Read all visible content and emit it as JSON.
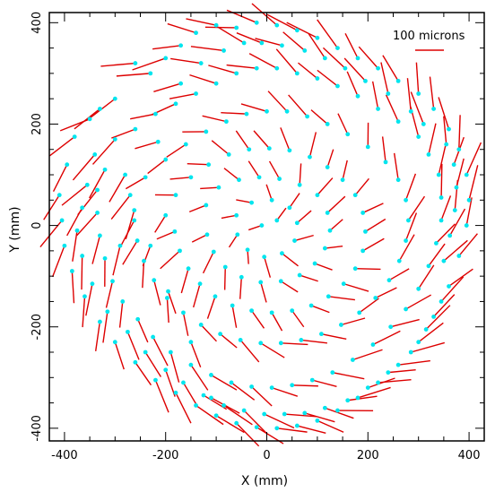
{
  "chart_data": {
    "type": "scatter",
    "title": "",
    "xlabel": "X (mm)",
    "ylabel": "Y (mm)",
    "xlim": [
      -430,
      430
    ],
    "ylim": [
      -425,
      420
    ],
    "x_ticks": [
      -400,
      -200,
      0,
      200,
      400
    ],
    "y_ticks": [
      -400,
      -200,
      0,
      200,
      400
    ],
    "x_tick_labels": [
      "-400",
      "-200",
      "0",
      "200",
      "400"
    ],
    "y_tick_labels": [
      "-400",
      "-200",
      "0",
      "200",
      "400"
    ],
    "grid": false,
    "legend": {
      "label": "100 microns",
      "placement": "top-right",
      "reference_vector_microns": 100
    },
    "colors": {
      "vector": "#dd0000",
      "point": "#00e5ee",
      "axis": "#000000"
    },
    "points": [
      [
        -410,
        60
      ],
      [
        -395,
        120
      ],
      [
        -380,
        175
      ],
      [
        -350,
        210
      ],
      [
        -330,
        230
      ],
      [
        -300,
        250
      ],
      [
        -260,
        320
      ],
      [
        -230,
        300
      ],
      [
        -200,
        330
      ],
      [
        -170,
        355
      ],
      [
        -140,
        380
      ],
      [
        -100,
        395
      ],
      [
        -60,
        390
      ],
      [
        -20,
        400
      ],
      [
        20,
        395
      ],
      [
        60,
        385
      ],
      [
        100,
        370
      ],
      [
        140,
        350
      ],
      [
        180,
        330
      ],
      [
        220,
        310
      ],
      [
        260,
        285
      ],
      [
        300,
        260
      ],
      [
        330,
        230
      ],
      [
        360,
        190
      ],
      [
        380,
        150
      ],
      [
        395,
        100
      ],
      [
        400,
        50
      ],
      [
        395,
        0
      ],
      [
        380,
        -60
      ],
      [
        360,
        -120
      ],
      [
        330,
        -180
      ],
      [
        300,
        -230
      ],
      [
        260,
        -275
      ],
      [
        220,
        -310
      ],
      [
        180,
        -340
      ],
      [
        140,
        -365
      ],
      [
        100,
        -385
      ],
      [
        60,
        -395
      ],
      [
        20,
        -400
      ],
      [
        -20,
        -398
      ],
      [
        -60,
        -390
      ],
      [
        -100,
        -375
      ],
      [
        -140,
        -355
      ],
      [
        -180,
        -330
      ],
      [
        -220,
        -305
      ],
      [
        -260,
        -270
      ],
      [
        -300,
        -230
      ],
      [
        -330,
        -190
      ],
      [
        -360,
        -140
      ],
      [
        -385,
        -90
      ],
      [
        -400,
        -40
      ],
      [
        -405,
        10
      ],
      [
        -340,
        140
      ],
      [
        -300,
        170
      ],
      [
        -260,
        190
      ],
      [
        -220,
        220
      ],
      [
        -180,
        240
      ],
      [
        -140,
        260
      ],
      [
        -100,
        280
      ],
      [
        -60,
        300
      ],
      [
        -20,
        310
      ],
      [
        20,
        310
      ],
      [
        60,
        300
      ],
      [
        100,
        290
      ],
      [
        140,
        275
      ],
      [
        180,
        255
      ],
      [
        220,
        230
      ],
      [
        260,
        205
      ],
      [
        300,
        175
      ],
      [
        320,
        140
      ],
      [
        340,
        100
      ],
      [
        345,
        55
      ],
      [
        345,
        10
      ],
      [
        335,
        -35
      ],
      [
        320,
        -80
      ],
      [
        300,
        -125
      ],
      [
        275,
        -165
      ],
      [
        245,
        -200
      ],
      [
        210,
        -235
      ],
      [
        170,
        -265
      ],
      [
        130,
        -290
      ],
      [
        90,
        -305
      ],
      [
        50,
        -315
      ],
      [
        10,
        -320
      ],
      [
        -30,
        -318
      ],
      [
        -70,
        -310
      ],
      [
        -110,
        -295
      ],
      [
        -150,
        -275
      ],
      [
        -190,
        -250
      ],
      [
        -225,
        -220
      ],
      [
        -255,
        -185
      ],
      [
        -285,
        -150
      ],
      [
        -305,
        -110
      ],
      [
        -320,
        -65
      ],
      [
        -330,
        -20
      ],
      [
        -335,
        25
      ],
      [
        -335,
        70
      ],
      [
        -320,
        110
      ],
      [
        -270,
        60
      ],
      [
        -240,
        95
      ],
      [
        -200,
        130
      ],
      [
        -160,
        160
      ],
      [
        -120,
        185
      ],
      [
        -80,
        205
      ],
      [
        -40,
        220
      ],
      [
        0,
        225
      ],
      [
        40,
        225
      ],
      [
        80,
        215
      ],
      [
        120,
        200
      ],
      [
        160,
        180
      ],
      [
        200,
        155
      ],
      [
        235,
        125
      ],
      [
        260,
        90
      ],
      [
        275,
        50
      ],
      [
        280,
        10
      ],
      [
        275,
        -30
      ],
      [
        262,
        -70
      ],
      [
        242,
        -108
      ],
      [
        215,
        -143
      ],
      [
        183,
        -172
      ],
      [
        147,
        -196
      ],
      [
        108,
        -214
      ],
      [
        68,
        -226
      ],
      [
        28,
        -232
      ],
      [
        -12,
        -232
      ],
      [
        -52,
        -226
      ],
      [
        -92,
        -214
      ],
      [
        -130,
        -196
      ],
      [
        -165,
        -172
      ],
      [
        -197,
        -143
      ],
      [
        -223,
        -108
      ],
      [
        -243,
        -70
      ],
      [
        -256,
        -30
      ],
      [
        -262,
        10
      ],
      [
        -262,
        30
      ],
      [
        -200,
        20
      ],
      [
        -180,
        60
      ],
      [
        -150,
        95
      ],
      [
        -115,
        120
      ],
      [
        -75,
        140
      ],
      [
        -35,
        150
      ],
      [
        5,
        152
      ],
      [
        45,
        148
      ],
      [
        85,
        135
      ],
      [
        120,
        115
      ],
      [
        150,
        90
      ],
      [
        175,
        60
      ],
      [
        190,
        25
      ],
      [
        195,
        -12
      ],
      [
        190,
        -50
      ],
      [
        175,
        -85
      ],
      [
        152,
        -115
      ],
      [
        122,
        -140
      ],
      [
        88,
        -158
      ],
      [
        50,
        -168
      ],
      [
        10,
        -172
      ],
      [
        -30,
        -168
      ],
      [
        -68,
        -158
      ],
      [
        -102,
        -140
      ],
      [
        -132,
        -115
      ],
      [
        -155,
        -85
      ],
      [
        -172,
        -50
      ],
      [
        -182,
        -12
      ],
      [
        -120,
        40
      ],
      [
        -95,
        75
      ],
      [
        -55,
        90
      ],
      [
        -15,
        95
      ],
      [
        25,
        92
      ],
      [
        65,
        80
      ],
      [
        100,
        60
      ],
      [
        120,
        25
      ],
      [
        125,
        -10
      ],
      [
        115,
        -45
      ],
      [
        95,
        -75
      ],
      [
        65,
        -98
      ],
      [
        28,
        -110
      ],
      [
        -12,
        -112
      ],
      [
        -50,
        -102
      ],
      [
        -82,
        -82
      ],
      [
        -105,
        -52
      ],
      [
        -118,
        -18
      ],
      [
        -60,
        20
      ],
      [
        -30,
        45
      ],
      [
        10,
        50
      ],
      [
        45,
        35
      ],
      [
        60,
        5
      ],
      [
        55,
        -30
      ],
      [
        30,
        -55
      ],
      [
        -5,
        -62
      ],
      [
        -38,
        -48
      ],
      [
        -58,
        -18
      ],
      [
        -10,
        0
      ],
      [
        20,
        10
      ],
      [
        -375,
        -10
      ],
      [
        -365,
        35
      ],
      [
        -355,
        80
      ],
      [
        -290,
        -40
      ],
      [
        -280,
        100
      ],
      [
        -230,
        -40
      ],
      [
        -215,
        165
      ],
      [
        -195,
        -130
      ],
      [
        -170,
        280
      ],
      [
        -150,
        -230
      ],
      [
        -130,
        320
      ],
      [
        -110,
        -340
      ],
      [
        -85,
        345
      ],
      [
        -45,
        360
      ],
      [
        -10,
        360
      ],
      [
        30,
        355
      ],
      [
        75,
        345
      ],
      [
        115,
        330
      ],
      [
        155,
        310
      ],
      [
        195,
        285
      ],
      [
        240,
        260
      ],
      [
        285,
        225
      ],
      [
        310,
        200
      ],
      [
        355,
        160
      ],
      [
        370,
        120
      ],
      [
        375,
        75
      ],
      [
        372,
        30
      ],
      [
        362,
        -20
      ],
      [
        350,
        -70
      ],
      [
        345,
        -150
      ],
      [
        315,
        -205
      ],
      [
        285,
        -250
      ],
      [
        240,
        -290
      ],
      [
        200,
        -320
      ],
      [
        160,
        -345
      ],
      [
        115,
        -360
      ],
      [
        75,
        -370
      ],
      [
        35,
        -372
      ],
      [
        -5,
        -372
      ],
      [
        -45,
        -365
      ],
      [
        -85,
        -355
      ],
      [
        -125,
        -335
      ],
      [
        -165,
        -310
      ],
      [
        -200,
        -285
      ],
      [
        -240,
        -250
      ],
      [
        -275,
        -210
      ],
      [
        -315,
        -170
      ],
      [
        -345,
        -115
      ],
      [
        -365,
        -60
      ]
    ]
  }
}
